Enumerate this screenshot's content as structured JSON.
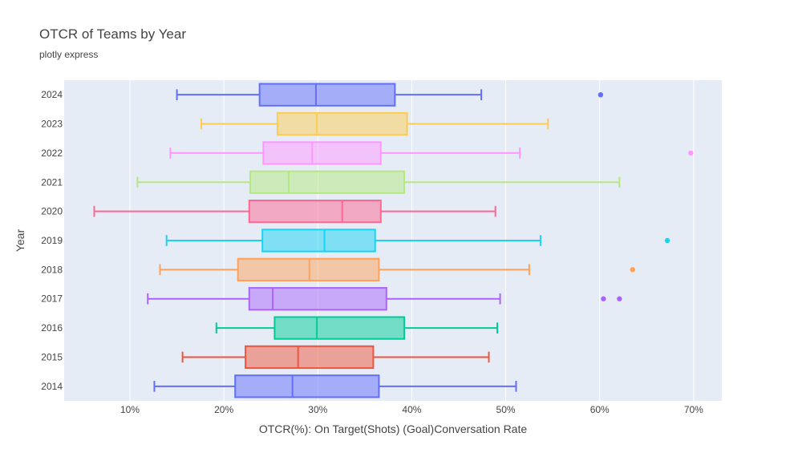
{
  "chart_data": {
    "type": "box",
    "orientation": "horizontal",
    "title": "OTCR of Teams by Year",
    "subtitle": "plotly express",
    "xlabel": "OTCR(%): On Target(Shots) (Goal)Conversation Rate",
    "ylabel": "Year",
    "xlim": [
      3,
      73
    ],
    "x_ticks": [
      10,
      20,
      30,
      40,
      50,
      60,
      70
    ],
    "x_tick_labels": [
      "10%",
      "20%",
      "30%",
      "40%",
      "50%",
      "60%",
      "70%"
    ],
    "grid": true,
    "background": "#e5ecf6",
    "categories": [
      "2014",
      "2015",
      "2016",
      "2017",
      "2018",
      "2019",
      "2020",
      "2021",
      "2022",
      "2023",
      "2024"
    ],
    "series": [
      {
        "category": "2014",
        "color": "#636efa",
        "min": 12.6,
        "q1": 21.2,
        "median": 27.3,
        "q3": 36.5,
        "max": 51.1,
        "outliers": []
      },
      {
        "category": "2015",
        "color": "#ef553b",
        "min": 15.6,
        "q1": 22.3,
        "median": 27.9,
        "q3": 35.9,
        "max": 48.2,
        "outliers": []
      },
      {
        "category": "2016",
        "color": "#00cc96",
        "min": 19.2,
        "q1": 25.4,
        "median": 29.9,
        "q3": 39.2,
        "max": 49.1,
        "outliers": []
      },
      {
        "category": "2017",
        "color": "#ab63fa",
        "min": 11.9,
        "q1": 22.7,
        "median": 25.2,
        "q3": 37.3,
        "max": 49.4,
        "outliers": [
          60.4,
          62.1
        ]
      },
      {
        "category": "2018",
        "color": "#ffa15a",
        "min": 13.2,
        "q1": 21.5,
        "median": 29.1,
        "q3": 36.5,
        "max": 52.5,
        "outliers": [
          63.5
        ]
      },
      {
        "category": "2019",
        "color": "#19d3f3",
        "min": 13.9,
        "q1": 24.1,
        "median": 30.7,
        "q3": 36.1,
        "max": 53.7,
        "outliers": [
          67.2
        ]
      },
      {
        "category": "2020",
        "color": "#ff6692",
        "min": 6.2,
        "q1": 22.7,
        "median": 32.6,
        "q3": 36.7,
        "max": 48.9,
        "outliers": []
      },
      {
        "category": "2021",
        "color": "#b6e880",
        "min": 10.8,
        "q1": 22.8,
        "median": 26.9,
        "q3": 39.2,
        "max": 62.1,
        "outliers": []
      },
      {
        "category": "2022",
        "color": "#ff97ff",
        "min": 14.3,
        "q1": 24.2,
        "median": 29.4,
        "q3": 36.7,
        "max": 51.5,
        "outliers": [
          69.7
        ]
      },
      {
        "category": "2023",
        "color": "#fecb52",
        "min": 17.6,
        "q1": 25.7,
        "median": 29.9,
        "q3": 39.5,
        "max": 54.5,
        "outliers": []
      },
      {
        "category": "2024",
        "color": "#636efa",
        "min": 15.0,
        "q1": 23.8,
        "median": 29.8,
        "q3": 38.2,
        "max": 47.4,
        "outliers": [
          60.1
        ]
      }
    ]
  }
}
